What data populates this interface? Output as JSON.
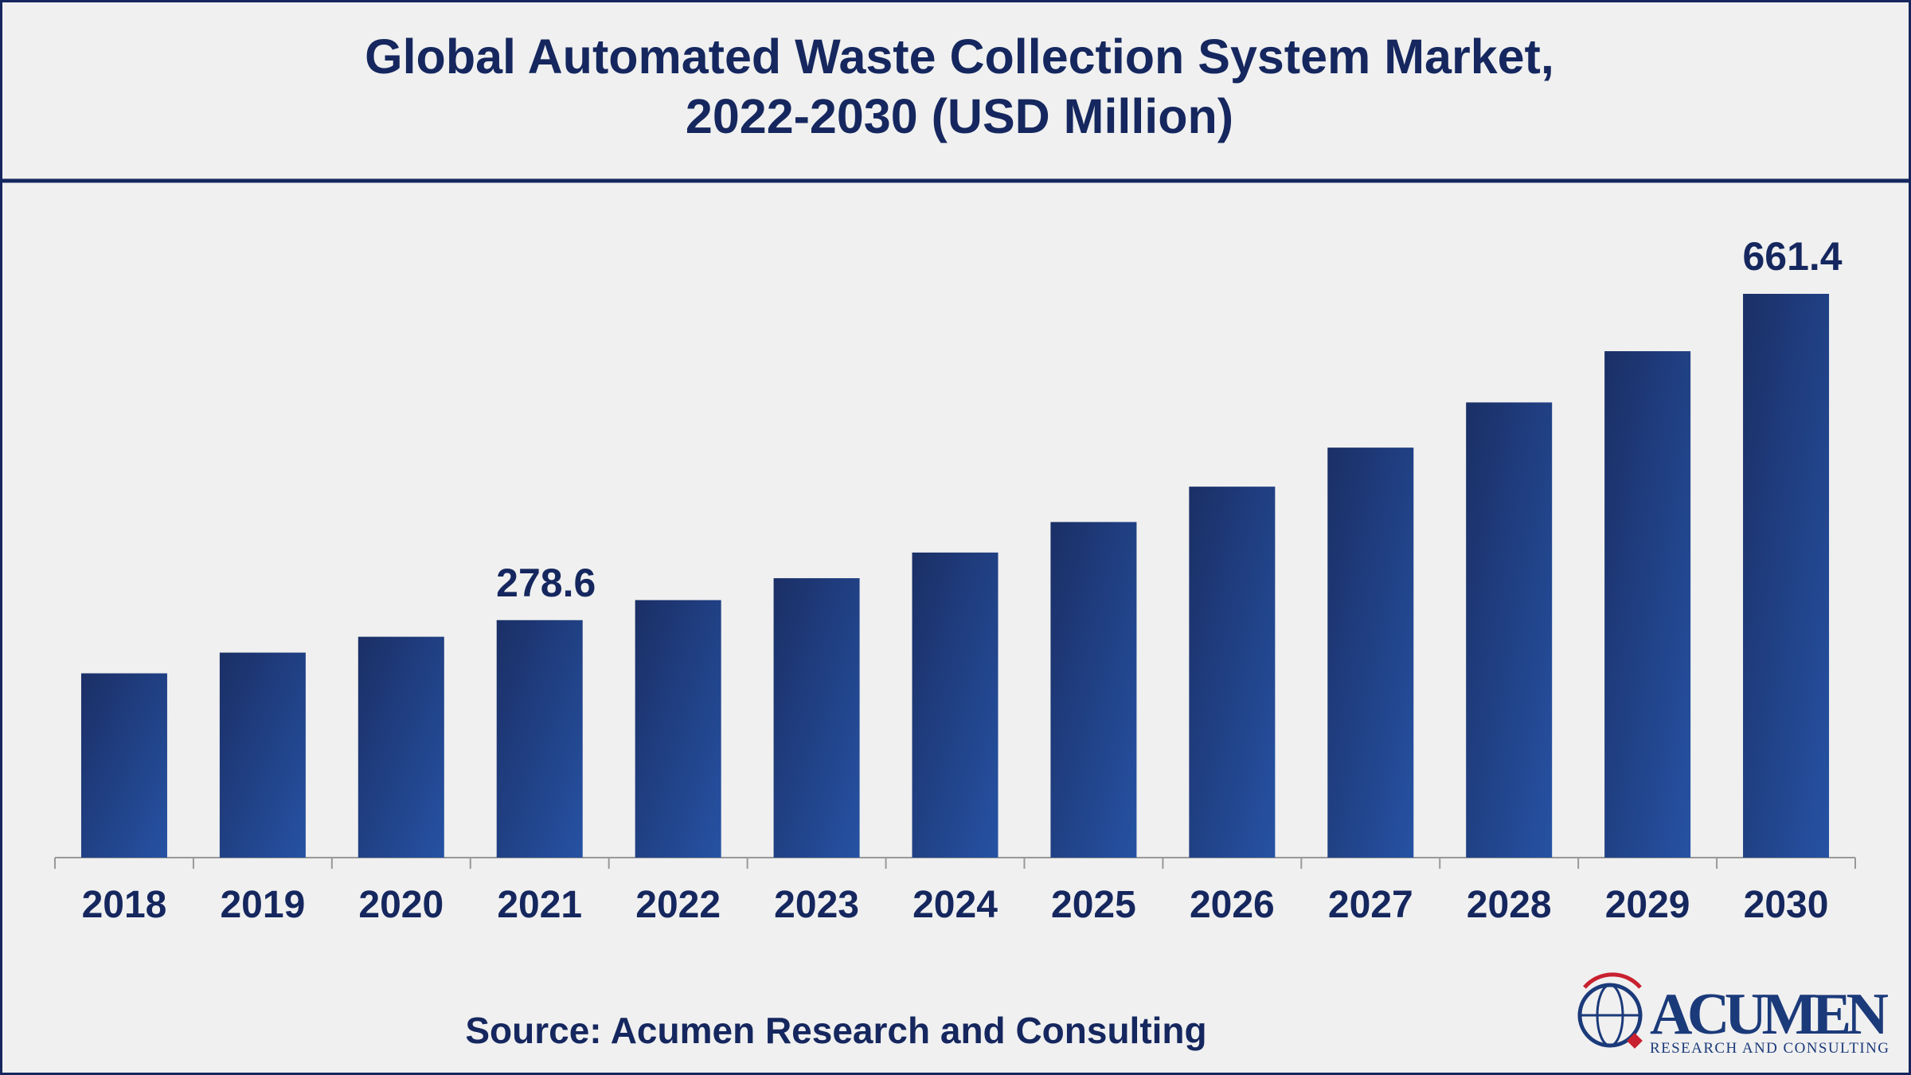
{
  "chart_data": {
    "type": "bar",
    "title": "Global Automated Waste Collection System Market,",
    "subtitle": "2022-2030 (USD Million)",
    "categories": [
      "2018",
      "2019",
      "2020",
      "2021",
      "2022",
      "2023",
      "2024",
      "2025",
      "2026",
      "2027",
      "2028",
      "2029",
      "2030"
    ],
    "values": [
      216.2,
      240.5,
      259.1,
      278.6,
      302.1,
      327.8,
      357.9,
      393.7,
      435.2,
      481.0,
      534.0,
      594.1,
      661.4
    ],
    "value_labels": [
      null,
      null,
      null,
      "278.6",
      null,
      null,
      null,
      null,
      null,
      null,
      null,
      null,
      "661.4"
    ],
    "color": "#22479a",
    "source": "Source: Acumen Research and Consulting",
    "logo": {
      "name": "ACUMEN",
      "tagline": "RESEARCH AND CONSULTING"
    }
  }
}
